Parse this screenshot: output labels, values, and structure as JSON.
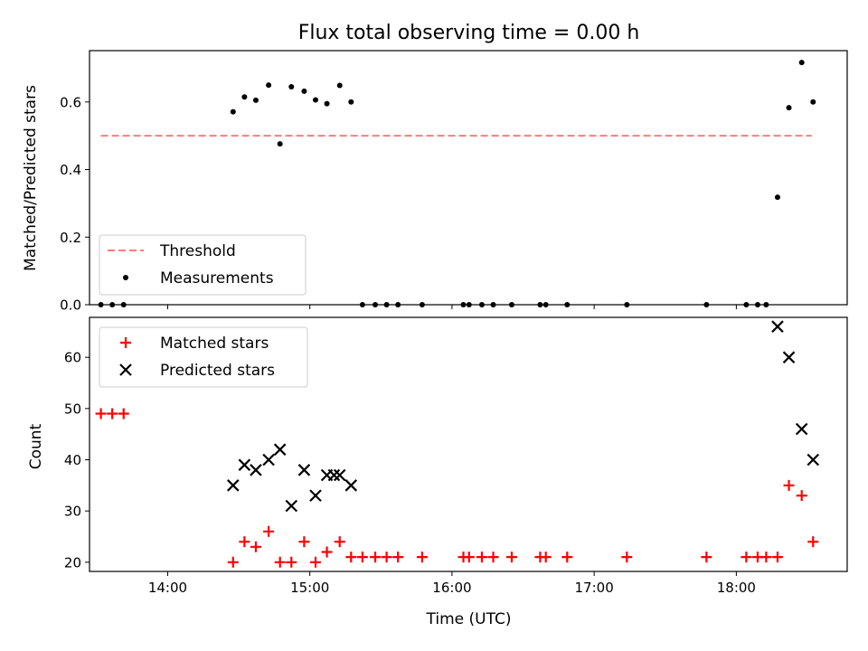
{
  "chart_data": {
    "type": "scatter",
    "title": "Flux total observing time = 0.00 h",
    "xlabel": "Time (UTC)",
    "x_unit": "hours_utc",
    "xlim": [
      13.45,
      18.78
    ],
    "xticks": [
      {
        "value": 14,
        "label": "14:00"
      },
      {
        "value": 15,
        "label": "15:00"
      },
      {
        "value": 16,
        "label": "16:00"
      },
      {
        "value": 17,
        "label": "17:00"
      },
      {
        "value": 18,
        "label": "18:00"
      }
    ],
    "panels": [
      {
        "ylabel": "Matched/Predicted stars",
        "ylim": [
          0,
          0.752
        ],
        "yticks": [
          0.0,
          0.2,
          0.4,
          0.6
        ],
        "ytick_labels": [
          "0.0",
          "0.2",
          "0.4",
          "0.6"
        ],
        "legend_position": "lower-left",
        "series": [
          {
            "name": "Threshold",
            "kind": "dashed-line",
            "color": "#ff7b7b",
            "x": [
              13.53,
              18.53
            ],
            "y": [
              0.5,
              0.5
            ]
          },
          {
            "name": "Measurements",
            "kind": "dot",
            "color": "#000000",
            "x": [
              13.53,
              13.61,
              13.69,
              14.46,
              14.54,
              14.62,
              14.71,
              14.79,
              14.87,
              14.96,
              15.04,
              15.12,
              15.21,
              15.29,
              15.37,
              15.46,
              15.54,
              15.62,
              15.79,
              16.08,
              16.12,
              16.21,
              16.29,
              16.42,
              16.62,
              16.66,
              16.81,
              17.23,
              17.79,
              18.07,
              18.15,
              18.21,
              18.29,
              18.37,
              18.46,
              18.54
            ],
            "y": [
              0.0,
              0.0,
              0.0,
              0.571,
              0.615,
              0.605,
              0.65,
              0.476,
              0.645,
              0.632,
              0.606,
              0.595,
              0.649,
              0.6,
              0.0,
              0.0,
              0.0,
              0.0,
              0.0,
              0.0,
              0.0,
              0.0,
              0.0,
              0.0,
              0.0,
              0.0,
              0.0,
              0.0,
              0.0,
              0.0,
              0.0,
              0.0,
              0.318,
              0.583,
              0.717,
              0.6
            ]
          }
        ]
      },
      {
        "ylabel": "Count",
        "ylim": [
          18.2,
          67.8
        ],
        "yticks": [
          20,
          30,
          40,
          50,
          60
        ],
        "ytick_labels": [
          "20",
          "30",
          "40",
          "50",
          "60"
        ],
        "legend_position": "upper-left",
        "series": [
          {
            "name": "Matched stars",
            "kind": "plus",
            "color": "#ff0000",
            "x": [
              13.53,
              13.61,
              13.69,
              14.46,
              14.54,
              14.62,
              14.71,
              14.79,
              14.87,
              14.96,
              15.04,
              15.12,
              15.21,
              15.29,
              15.37,
              15.46,
              15.54,
              15.62,
              15.79,
              16.08,
              16.12,
              16.21,
              16.29,
              16.42,
              16.62,
              16.66,
              16.81,
              17.23,
              17.79,
              18.07,
              18.15,
              18.21,
              18.29,
              18.37,
              18.46,
              18.54
            ],
            "y": [
              49,
              49,
              49,
              20,
              24,
              23,
              26,
              20,
              20,
              24,
              20,
              22,
              24,
              21,
              21,
              21,
              21,
              21,
              21,
              21,
              21,
              21,
              21,
              21,
              21,
              21,
              21,
              21,
              21,
              21,
              21,
              21,
              21,
              35,
              33,
              24
            ]
          },
          {
            "name": "Predicted stars",
            "kind": "cross",
            "color": "#000000",
            "x": [
              14.46,
              14.54,
              14.62,
              14.71,
              14.79,
              14.87,
              14.96,
              15.04,
              15.12,
              15.17,
              15.21,
              15.29,
              18.29,
              18.37,
              18.46,
              18.54
            ],
            "y": [
              35,
              39,
              38,
              40,
              42,
              31,
              38,
              33,
              37,
              37,
              37,
              35,
              66,
              60,
              46,
              40
            ]
          }
        ]
      }
    ]
  }
}
